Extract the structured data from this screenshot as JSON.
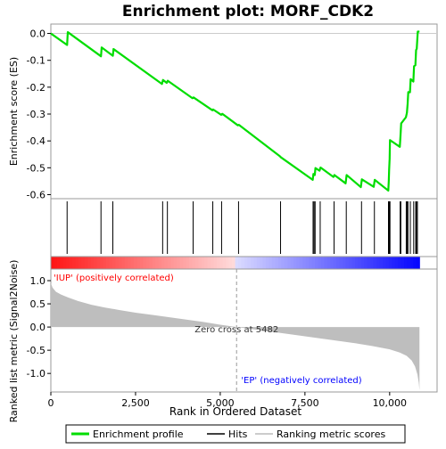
{
  "title": "Enrichment plot: MORF_CDK2",
  "colors": {
    "es_line": "#00dd00",
    "hits": "#000000",
    "metric_fill": "#bebebe",
    "pos_band": "#ff0000",
    "neg_band": "#0000ff",
    "frame": "#999999"
  },
  "chart_data": {
    "type": "line",
    "title": "Enrichment plot: MORF_CDK2",
    "xlabel": "Rank in Ordered Dataset",
    "xlim": [
      0,
      11400
    ],
    "x_ticks": [
      0,
      2500,
      5000,
      7500,
      10000
    ],
    "x_tick_labels": [
      "0",
      "2,500",
      "5,000",
      "7,500",
      "10,000"
    ],
    "es_panel": {
      "ylabel": "Enrichment score (ES)",
      "ylim": [
        -0.615,
        0.035
      ],
      "y_ticks": [
        0.0,
        -0.1,
        -0.2,
        -0.3,
        -0.4,
        -0.5,
        -0.6
      ],
      "y_tick_labels": [
        "0.0",
        "-0.1",
        "-0.2",
        "-0.3",
        "-0.4",
        "-0.5",
        "-0.6"
      ],
      "series": [
        {
          "name": "Enrichment profile",
          "x": [
            0,
            480,
            500,
            1480,
            1500,
            1830,
            1850,
            3280,
            3310,
            3420,
            3450,
            4180,
            4210,
            4770,
            4790,
            5030,
            5060,
            5520,
            5550,
            6760,
            6790,
            7730,
            7750,
            7790,
            7810,
            7930,
            7960,
            8340,
            8370,
            8700,
            8730,
            9150,
            9180,
            9530,
            9560,
            9960,
            9975,
            9985,
            10000,
            10010,
            10300,
            10320,
            10340,
            10480,
            10510,
            10530,
            10550,
            10600,
            10620,
            10700,
            10720,
            10760,
            10780,
            10800,
            10830,
            10880
          ],
          "y": [
            -0.0,
            -0.043,
            0.005,
            -0.085,
            -0.052,
            -0.083,
            -0.058,
            -0.188,
            -0.173,
            -0.184,
            -0.176,
            -0.241,
            -0.238,
            -0.286,
            -0.283,
            -0.303,
            -0.299,
            -0.342,
            -0.34,
            -0.457,
            -0.461,
            -0.545,
            -0.523,
            -0.527,
            -0.501,
            -0.511,
            -0.499,
            -0.534,
            -0.527,
            -0.558,
            -0.527,
            -0.572,
            -0.543,
            -0.571,
            -0.545,
            -0.585,
            -0.547,
            -0.507,
            -0.466,
            -0.397,
            -0.422,
            -0.382,
            -0.335,
            -0.312,
            -0.295,
            -0.263,
            -0.218,
            -0.219,
            -0.17,
            -0.179,
            -0.122,
            -0.118,
            -0.062,
            -0.057,
            0.007,
            0.007
          ]
        }
      ]
    },
    "hits_x": [
      480,
      1480,
      1830,
      3300,
      3440,
      4200,
      4780,
      5040,
      5540,
      6780,
      7740,
      7770,
      7800,
      7950,
      8360,
      8720,
      9170,
      9550,
      9965,
      9980,
      9990,
      10000,
      10010,
      10310,
      10330,
      10490,
      10520,
      10540,
      10610,
      10710,
      10770,
      10790,
      10820
    ],
    "metric_panel": {
      "ylabel": "Ranked list metric (Signal2Noise)",
      "ylim": [
        -1.4,
        1.25
      ],
      "y_ticks": [
        1.0,
        0.5,
        0.0,
        -0.5,
        -1.0
      ],
      "y_tick_labels": [
        "1.0",
        "0.5",
        "0.0",
        "-0.5",
        "-1.0"
      ],
      "x": [
        0,
        50,
        150,
        300,
        500,
        800,
        1200,
        1600,
        2000,
        2500,
        3000,
        3500,
        4000,
        4500,
        5000,
        5482,
        6000,
        6500,
        7000,
        7500,
        8000,
        8500,
        9000,
        9500,
        10000,
        10300,
        10500,
        10650,
        10750,
        10820,
        10860,
        10880
      ],
      "y": [
        0.95,
        0.85,
        0.76,
        0.7,
        0.64,
        0.56,
        0.48,
        0.42,
        0.37,
        0.31,
        0.26,
        0.21,
        0.16,
        0.11,
        0.05,
        0.0,
        -0.05,
        -0.1,
        -0.15,
        -0.2,
        -0.25,
        -0.3,
        -0.35,
        -0.41,
        -0.48,
        -0.55,
        -0.62,
        -0.72,
        -0.85,
        -1.02,
        -1.2,
        -1.36
      ],
      "zero_cross_label": "Zero cross at 5482",
      "zero_cross_x": 5482,
      "pos_label": "'IUP' (positively correlated)",
      "neg_label": "'EP' (negatively correlated)"
    },
    "legend": {
      "placement": "bottom",
      "items": [
        "Enrichment profile",
        "Hits",
        "Ranking metric scores"
      ]
    }
  }
}
